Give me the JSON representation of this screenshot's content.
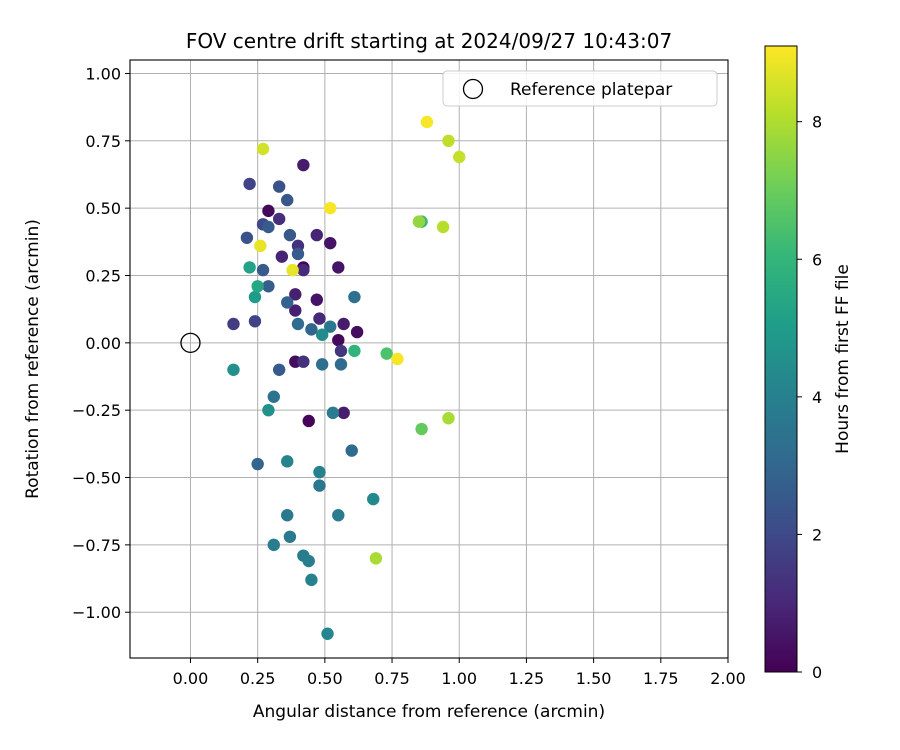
{
  "chart_data": {
    "type": "scatter",
    "title": "FOV centre drift starting at 2024/09/27 10:43:07",
    "xlabel": "Angular distance from reference (arcmin)",
    "ylabel": "Rotation from reference (arcmin)",
    "xlim": [
      -0.225,
      2.0
    ],
    "ylim": [
      -1.17,
      1.05
    ],
    "xticks": [
      0.0,
      0.25,
      0.5,
      0.75,
      1.0,
      1.25,
      1.5,
      1.75,
      2.0
    ],
    "xtick_labels": [
      "0.00",
      "0.25",
      "0.50",
      "0.75",
      "1.00",
      "1.25",
      "1.50",
      "1.75",
      "2.00"
    ],
    "yticks": [
      1.0,
      0.75,
      0.5,
      0.25,
      0.0,
      -0.25,
      -0.5,
      -0.75,
      -1.0
    ],
    "ytick_labels": [
      "1.00",
      "0.75",
      "0.50",
      "0.25",
      "0.00",
      "−0.25",
      "−0.50",
      "−0.75",
      "−1.00"
    ],
    "grid": true,
    "legend": {
      "position": "top-right",
      "entries": [
        "Reference platepar"
      ]
    },
    "reference": {
      "x": 0.0,
      "y": 0.0,
      "label": "Reference platepar"
    },
    "colorbar": {
      "label": "Hours from first FF file",
      "range": [
        0,
        9.1
      ],
      "ticks": [
        0,
        2,
        4,
        6,
        8
      ],
      "tick_labels": [
        "0",
        "2",
        "4",
        "6",
        "8"
      ],
      "colormap": "viridis"
    },
    "points": [
      {
        "x": 0.29,
        "y": 0.49,
        "h": 0.2
      },
      {
        "x": 0.42,
        "y": 0.28,
        "h": 0.1
      },
      {
        "x": 0.44,
        "y": -0.29,
        "h": 0.1
      },
      {
        "x": 0.62,
        "y": 0.04,
        "h": 0.3
      },
      {
        "x": 0.55,
        "y": 0.01,
        "h": 0.2
      },
      {
        "x": 0.39,
        "y": -0.07,
        "h": 0.3
      },
      {
        "x": 0.42,
        "y": 0.66,
        "h": 0.7
      },
      {
        "x": 0.34,
        "y": 0.32,
        "h": 0.9
      },
      {
        "x": 0.47,
        "y": 0.4,
        "h": 0.9
      },
      {
        "x": 0.52,
        "y": 0.37,
        "h": 0.5
      },
      {
        "x": 0.55,
        "y": 0.28,
        "h": 0.5
      },
      {
        "x": 0.47,
        "y": 0.16,
        "h": 0.5
      },
      {
        "x": 0.39,
        "y": 0.18,
        "h": 0.8
      },
      {
        "x": 0.39,
        "y": 0.12,
        "h": 0.8
      },
      {
        "x": 0.48,
        "y": 0.09,
        "h": 1.0
      },
      {
        "x": 0.57,
        "y": 0.07,
        "h": 0.7
      },
      {
        "x": 0.57,
        "y": -0.26,
        "h": 0.7
      },
      {
        "x": 0.42,
        "y": 0.27,
        "h": 1.1
      },
      {
        "x": 0.33,
        "y": 0.46,
        "h": 1.2
      },
      {
        "x": 0.4,
        "y": 0.36,
        "h": 1.3
      },
      {
        "x": 0.42,
        "y": -0.07,
        "h": 1.3
      },
      {
        "x": 0.56,
        "y": -0.03,
        "h": 1.4
      },
      {
        "x": 0.16,
        "y": 0.07,
        "h": 1.6
      },
      {
        "x": 0.24,
        "y": 0.08,
        "h": 1.8
      },
      {
        "x": 0.22,
        "y": 0.59,
        "h": 1.8
      },
      {
        "x": 0.27,
        "y": 0.44,
        "h": 2.0
      },
      {
        "x": 0.33,
        "y": 0.58,
        "h": 2.3
      },
      {
        "x": 0.36,
        "y": 0.53,
        "h": 2.5
      },
      {
        "x": 0.21,
        "y": 0.39,
        "h": 2.3
      },
      {
        "x": 0.29,
        "y": 0.43,
        "h": 2.6
      },
      {
        "x": 0.37,
        "y": 0.4,
        "h": 2.5
      },
      {
        "x": 0.4,
        "y": 0.33,
        "h": 2.6
      },
      {
        "x": 0.27,
        "y": 0.27,
        "h": 2.6
      },
      {
        "x": 0.29,
        "y": 0.21,
        "h": 2.7
      },
      {
        "x": 0.36,
        "y": 0.15,
        "h": 2.8
      },
      {
        "x": 0.45,
        "y": 0.05,
        "h": 3.0
      },
      {
        "x": 0.33,
        "y": -0.1,
        "h": 2.6
      },
      {
        "x": 0.25,
        "y": -0.45,
        "h": 3.0
      },
      {
        "x": 0.4,
        "y": 0.07,
        "h": 3.2
      },
      {
        "x": 0.6,
        "y": -0.4,
        "h": 3.1
      },
      {
        "x": 0.56,
        "y": -0.08,
        "h": 3.2
      },
      {
        "x": 0.61,
        "y": 0.17,
        "h": 3.4
      },
      {
        "x": 0.49,
        "y": -0.08,
        "h": 3.3
      },
      {
        "x": 0.31,
        "y": -0.2,
        "h": 3.5
      },
      {
        "x": 0.52,
        "y": 0.06,
        "h": 3.6
      },
      {
        "x": 0.48,
        "y": -0.53,
        "h": 3.6
      },
      {
        "x": 0.36,
        "y": -0.64,
        "h": 3.7
      },
      {
        "x": 0.37,
        "y": -0.72,
        "h": 3.7
      },
      {
        "x": 0.42,
        "y": -0.79,
        "h": 3.8
      },
      {
        "x": 0.31,
        "y": -0.75,
        "h": 3.9
      },
      {
        "x": 0.44,
        "y": -0.81,
        "h": 3.9
      },
      {
        "x": 0.53,
        "y": -0.26,
        "h": 3.8
      },
      {
        "x": 0.55,
        "y": -0.64,
        "h": 3.8
      },
      {
        "x": 0.45,
        "y": -0.88,
        "h": 4.0
      },
      {
        "x": 0.51,
        "y": -1.08,
        "h": 4.2
      },
      {
        "x": 0.48,
        "y": -0.48,
        "h": 4.0
      },
      {
        "x": 0.36,
        "y": -0.44,
        "h": 4.1
      },
      {
        "x": 0.68,
        "y": -0.58,
        "h": 4.3
      },
      {
        "x": 0.49,
        "y": 0.03,
        "h": 4.4
      },
      {
        "x": 0.29,
        "y": -0.25,
        "h": 4.6
      },
      {
        "x": 0.16,
        "y": -0.1,
        "h": 4.6
      },
      {
        "x": 0.24,
        "y": 0.17,
        "h": 5.0
      },
      {
        "x": 0.22,
        "y": 0.28,
        "h": 5.2
      },
      {
        "x": 0.25,
        "y": 0.21,
        "h": 5.4
      },
      {
        "x": 0.61,
        "y": -0.03,
        "h": 5.9
      },
      {
        "x": 0.86,
        "y": 0.45,
        "h": 6.2
      },
      {
        "x": 0.73,
        "y": -0.04,
        "h": 6.5
      },
      {
        "x": 0.86,
        "y": -0.32,
        "h": 6.9
      },
      {
        "x": 0.85,
        "y": 0.45,
        "h": 7.6
      },
      {
        "x": 0.94,
        "y": 0.43,
        "h": 8.1
      },
      {
        "x": 0.96,
        "y": -0.28,
        "h": 7.9
      },
      {
        "x": 0.69,
        "y": -0.8,
        "h": 7.9
      },
      {
        "x": 0.96,
        "y": 0.75,
        "h": 8.2
      },
      {
        "x": 1.0,
        "y": 0.69,
        "h": 8.3
      },
      {
        "x": 0.27,
        "y": 0.72,
        "h": 8.5
      },
      {
        "x": 0.26,
        "y": 0.36,
        "h": 8.8
      },
      {
        "x": 0.38,
        "y": 0.27,
        "h": 8.8
      },
      {
        "x": 0.88,
        "y": 0.82,
        "h": 9.0
      },
      {
        "x": 0.52,
        "y": 0.5,
        "h": 9.0
      },
      {
        "x": 0.77,
        "y": -0.06,
        "h": 9.0
      }
    ]
  }
}
